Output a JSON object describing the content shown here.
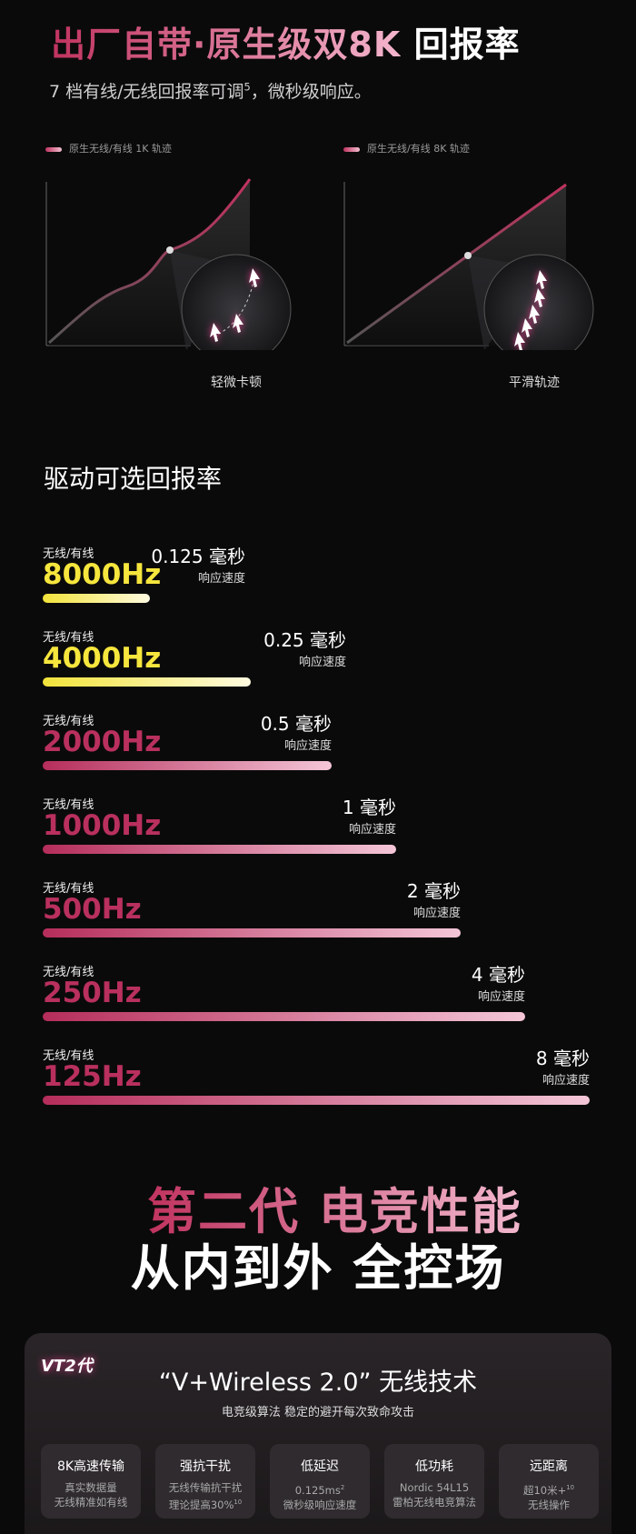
{
  "header": {
    "title_highlight": "出厂自带·原生级双8K",
    "title_rest": "回报率",
    "subtitle": "7 档有线/无线回报率可调",
    "subtitle_sup": "5",
    "subtitle_end": "，微秒级响应。"
  },
  "comparison": [
    {
      "legend": "原生无线/有线 1K 轨迹",
      "caption": "轻微卡顿"
    },
    {
      "legend": "原生无线/有线 8K 轨迹",
      "caption": "平滑轨迹"
    }
  ],
  "rates_section": {
    "title": "驱动可选回报率",
    "rows": [
      {
        "mode": "无线/有线",
        "rate": "8000Hz",
        "latency": "0.125 毫秒",
        "label": "响应速度"
      },
      {
        "mode": "无线/有线",
        "rate": "4000Hz",
        "latency": "0.25 毫秒",
        "label": "响应速度"
      },
      {
        "mode": "无线/有线",
        "rate": "2000Hz",
        "latency": "0.5 毫秒",
        "label": "响应速度"
      },
      {
        "mode": "无线/有线",
        "rate": "1000Hz",
        "latency": "1 毫秒",
        "label": "响应速度"
      },
      {
        "mode": "无线/有线",
        "rate": "500Hz",
        "latency": "2 毫秒",
        "label": "响应速度"
      },
      {
        "mode": "无线/有线",
        "rate": "250Hz",
        "latency": "4 毫秒",
        "label": "响应速度"
      },
      {
        "mode": "无线/有线",
        "rate": "125Hz",
        "latency": "8 毫秒",
        "label": "响应速度"
      }
    ]
  },
  "slogan": {
    "line1": "第二代 电竞性能",
    "line2": "从内到外 全控场"
  },
  "card": {
    "logo": "VT2代",
    "title": "“V+Wireless 2.0” 无线技术",
    "subtitle": "电竞级算法 稳定的避开每次致命攻击",
    "features": [
      {
        "title": "8K高速传输",
        "lines": [
          {
            "text": "真实数据量"
          },
          {
            "text": "无线精准如有线"
          }
        ]
      },
      {
        "title": "强抗干扰",
        "lines": [
          {
            "text": "无线传输抗干扰"
          },
          {
            "text": "理论提高30%",
            "sup": "10"
          }
        ]
      },
      {
        "title": "低延迟",
        "lines": [
          {
            "text": "0.125ms",
            "sup": "2"
          },
          {
            "text": "微秒级响应速度"
          }
        ]
      },
      {
        "title": "低功耗",
        "lines": [
          {
            "text": "Nordic 54L15"
          },
          {
            "text": "雷柏无线电竞算法"
          }
        ]
      },
      {
        "title": "远距离",
        "lines": [
          {
            "text": "超10米+",
            "sup": "10"
          },
          {
            "text": "无线操作"
          }
        ]
      }
    ]
  }
}
